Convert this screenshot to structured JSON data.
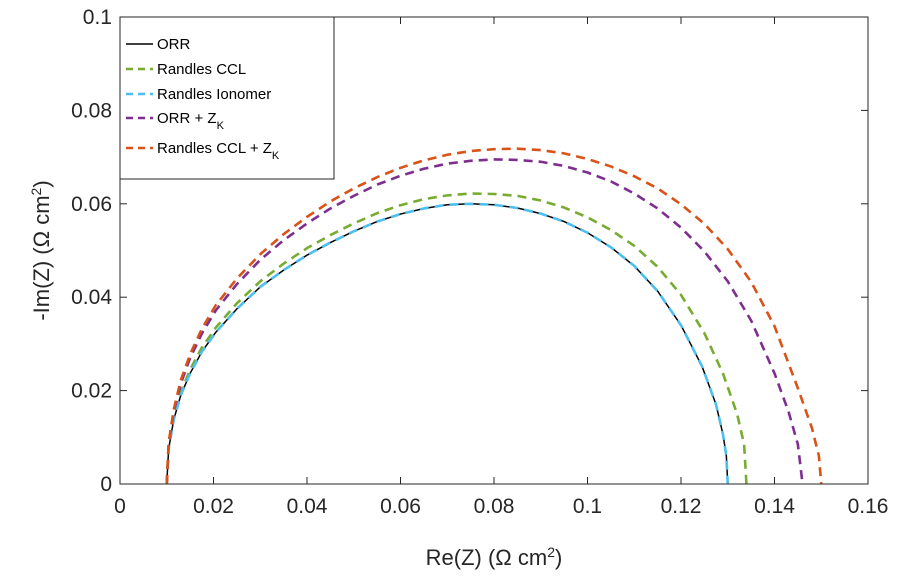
{
  "chart_data": {
    "type": "line",
    "title": "",
    "xlabel": {
      "text": "Re(Z) (Ω cm",
      "sup": "2",
      "suffix": ")"
    },
    "ylabel": {
      "text": "-Im(Z) (Ω cm",
      "sup": "2",
      "suffix": ")"
    },
    "xlim": [
      0,
      0.16
    ],
    "ylim": [
      0,
      0.1
    ],
    "xticks": [
      0,
      0.02,
      0.04,
      0.06,
      0.08,
      0.1,
      0.12,
      0.14,
      0.16
    ],
    "xtick_labels": [
      "0",
      "0.02",
      "0.04",
      "0.06",
      "0.08",
      "0.1",
      "0.12",
      "0.14",
      "0.16"
    ],
    "yticks": [
      0,
      0.02,
      0.04,
      0.06,
      0.08,
      0.1
    ],
    "ytick_labels": [
      "0",
      "0.02",
      "0.04",
      "0.06",
      "0.08",
      "0.1"
    ],
    "grid": false,
    "legend_position": "top-left",
    "series": [
      {
        "name": "ORR",
        "color": "#000000",
        "dash": "solid",
        "x": [
          0.01,
          0.0104,
          0.0115,
          0.013,
          0.015,
          0.0175,
          0.0205,
          0.025,
          0.03,
          0.035,
          0.04,
          0.045,
          0.05,
          0.055,
          0.06,
          0.065,
          0.07,
          0.075,
          0.08,
          0.085,
          0.09,
          0.095,
          0.1,
          0.105,
          0.11,
          0.115,
          0.12,
          0.1245,
          0.1275,
          0.129,
          0.1297,
          0.13
        ],
        "y": [
          0,
          0.0075,
          0.0138,
          0.019,
          0.0237,
          0.0283,
          0.0325,
          0.0375,
          0.0422,
          0.0458,
          0.049,
          0.0517,
          0.0541,
          0.0562,
          0.0578,
          0.059,
          0.0598,
          0.06,
          0.0598,
          0.0591,
          0.0579,
          0.0562,
          0.0538,
          0.0507,
          0.0467,
          0.0413,
          0.034,
          0.0252,
          0.017,
          0.0105,
          0.006,
          0
        ]
      },
      {
        "name": "Randles CCL",
        "color": "#77ac30",
        "dash": "dashed",
        "x": [
          0.01,
          0.0104,
          0.0115,
          0.013,
          0.015,
          0.0175,
          0.0205,
          0.025,
          0.03,
          0.035,
          0.04,
          0.045,
          0.05,
          0.055,
          0.06,
          0.065,
          0.07,
          0.075,
          0.08,
          0.085,
          0.09,
          0.095,
          0.1,
          0.105,
          0.11,
          0.115,
          0.12,
          0.125,
          0.129,
          0.132,
          0.1335,
          0.134
        ],
        "y": [
          0,
          0.0078,
          0.0143,
          0.0197,
          0.0245,
          0.0292,
          0.0335,
          0.0387,
          0.0434,
          0.0472,
          0.0505,
          0.0533,
          0.0558,
          0.058,
          0.0597,
          0.061,
          0.0618,
          0.0622,
          0.0621,
          0.0617,
          0.0607,
          0.0592,
          0.0571,
          0.0544,
          0.051,
          0.0465,
          0.0405,
          0.0323,
          0.0236,
          0.015,
          0.0085,
          0
        ]
      },
      {
        "name": "Randles Ionomer",
        "color": "#4dbeee",
        "dash": "dashed",
        "x": [
          0.01,
          0.0104,
          0.0115,
          0.013,
          0.015,
          0.0175,
          0.0205,
          0.025,
          0.03,
          0.035,
          0.04,
          0.045,
          0.05,
          0.055,
          0.06,
          0.065,
          0.07,
          0.075,
          0.08,
          0.085,
          0.09,
          0.095,
          0.1,
          0.105,
          0.11,
          0.115,
          0.12,
          0.1245,
          0.1275,
          0.129,
          0.1297,
          0.13
        ],
        "y": [
          0,
          0.0075,
          0.0138,
          0.019,
          0.0237,
          0.0283,
          0.0325,
          0.0375,
          0.0422,
          0.0458,
          0.049,
          0.0517,
          0.0541,
          0.0562,
          0.0578,
          0.059,
          0.0598,
          0.06,
          0.0598,
          0.0591,
          0.0579,
          0.0562,
          0.0538,
          0.0507,
          0.0467,
          0.0413,
          0.034,
          0.0252,
          0.017,
          0.0105,
          0.006,
          0
        ]
      },
      {
        "name": "ORR + Z",
        "name_sub": "K",
        "color": "#7e2f8e",
        "dash": "dashed",
        "x": [
          0.01,
          0.0104,
          0.0115,
          0.013,
          0.015,
          0.0175,
          0.0205,
          0.025,
          0.03,
          0.035,
          0.04,
          0.045,
          0.05,
          0.055,
          0.06,
          0.065,
          0.07,
          0.075,
          0.08,
          0.085,
          0.09,
          0.095,
          0.1,
          0.105,
          0.11,
          0.115,
          0.12,
          0.125,
          0.13,
          0.135,
          0.14,
          0.143,
          0.145,
          0.146
        ],
        "y": [
          0,
          0.0085,
          0.0155,
          0.0215,
          0.027,
          0.0322,
          0.0372,
          0.0428,
          0.048,
          0.0522,
          0.0558,
          0.059,
          0.0617,
          0.0641,
          0.066,
          0.0675,
          0.0686,
          0.0692,
          0.0695,
          0.0694,
          0.069,
          0.0681,
          0.0667,
          0.0648,
          0.0622,
          0.059,
          0.0549,
          0.0498,
          0.0434,
          0.035,
          0.0237,
          0.0155,
          0.0085,
          0
        ]
      },
      {
        "name": "Randles CCL + Z",
        "name_sub": "K",
        "color": "#d95319",
        "dash": "dashed",
        "x": [
          0.01,
          0.0104,
          0.0115,
          0.013,
          0.015,
          0.0175,
          0.0205,
          0.025,
          0.03,
          0.035,
          0.04,
          0.045,
          0.05,
          0.055,
          0.06,
          0.065,
          0.07,
          0.075,
          0.08,
          0.085,
          0.09,
          0.095,
          0.1,
          0.105,
          0.11,
          0.115,
          0.12,
          0.125,
          0.13,
          0.135,
          0.14,
          0.145,
          0.148,
          0.1495,
          0.15
        ],
        "y": [
          0,
          0.0088,
          0.016,
          0.0222,
          0.0278,
          0.0332,
          0.0383,
          0.044,
          0.0492,
          0.0535,
          0.0572,
          0.0605,
          0.0633,
          0.0657,
          0.0677,
          0.0693,
          0.0705,
          0.0713,
          0.0717,
          0.0718,
          0.0715,
          0.0708,
          0.0696,
          0.068,
          0.0659,
          0.0633,
          0.0599,
          0.0557,
          0.0503,
          0.0433,
          0.0338,
          0.0205,
          0.012,
          0.006,
          0
        ]
      }
    ]
  }
}
